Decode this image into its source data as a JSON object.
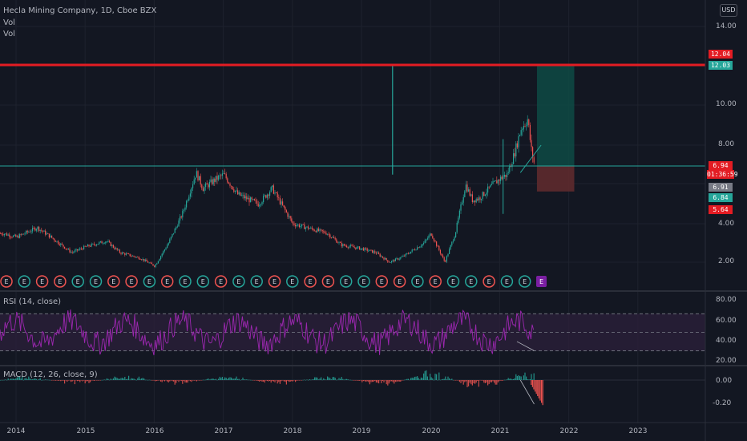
{
  "legend": {
    "title": "Hecla Mining Company, 1D, Cboe BZX",
    "vol1": "Vol",
    "vol2": "Vol",
    "rsi": "RSI (14, close)",
    "macd": "MACD (12, 26, close, 9)"
  },
  "currency": "USD",
  "price_labels": {
    "top": "12.04",
    "second": "12.03",
    "last": "6.94",
    "countdown": "01:36:59",
    "grey": "6.91",
    "green": "6.84",
    "red": "5.64"
  },
  "earnings_marker": "E",
  "colors": {
    "background": "#131722",
    "up": "#26a69a",
    "down": "#ef5350",
    "target_line": "#e31c23",
    "rsi": "#9c27b0",
    "rsi_band": "#2b1f3a",
    "profit_zone": "#0e4a44",
    "loss_zone": "#5e2a2e",
    "last_price": "#26a69a"
  },
  "chart_data": [
    {
      "type": "candlestick",
      "title": "Hecla Mining Company, 1D, Cboe BZX",
      "y_ticks": [
        "14.00",
        "12.00",
        "10.00",
        "8.00",
        "4.00",
        "2.00"
      ],
      "x_ticks": [
        "2014",
        "2015",
        "2016",
        "2017",
        "2018",
        "2019",
        "2020",
        "2021",
        "2022",
        "2023"
      ],
      "series": [
        {
          "name": "close",
          "x": [
            2013.8,
            2014.0,
            2014.3,
            2014.5,
            2014.8,
            2015.0,
            2015.3,
            2015.5,
            2015.8,
            2016.0,
            2016.2,
            2016.4,
            2016.6,
            2016.7,
            2016.9,
            2017.0,
            2017.2,
            2017.5,
            2017.7,
            2018.0,
            2018.2,
            2018.5,
            2018.7,
            2019.0,
            2019.2,
            2019.4,
            2019.6,
            2019.9,
            2020.0,
            2020.2,
            2020.35,
            2020.5,
            2020.6,
            2020.7,
            2020.9,
            2021.0,
            2021.1,
            2021.2,
            2021.3,
            2021.4,
            2021.45,
            2021.5
          ],
          "values": [
            3.5,
            3.3,
            3.8,
            3.3,
            2.5,
            2.8,
            3.1,
            2.5,
            2.2,
            1.8,
            3.0,
            4.5,
            6.6,
            5.8,
            6.3,
            6.5,
            5.5,
            5.0,
            5.8,
            4.0,
            3.8,
            3.5,
            2.9,
            2.7,
            2.5,
            2.0,
            2.3,
            3.0,
            3.5,
            2.0,
            3.5,
            6.0,
            5.2,
            5.3,
            6.0,
            6.3,
            6.5,
            7.5,
            8.8,
            9.3,
            7.8,
            6.94
          ]
        }
      ],
      "annotations": {
        "resistance": 12.04,
        "support": 6.94,
        "take_profit": 12.03,
        "stop": 5.64
      }
    },
    {
      "type": "line",
      "title": "RSI (14, close)",
      "y_ticks": [
        "80.00",
        "60.00",
        "40.00",
        "20.00"
      ],
      "ylim": [
        20,
        85
      ],
      "bands": [
        70,
        50,
        30
      ]
    },
    {
      "type": "bar",
      "title": "MACD (12, 26, close, 9)",
      "y_ticks": [
        "0.00",
        "-0.20"
      ]
    }
  ]
}
